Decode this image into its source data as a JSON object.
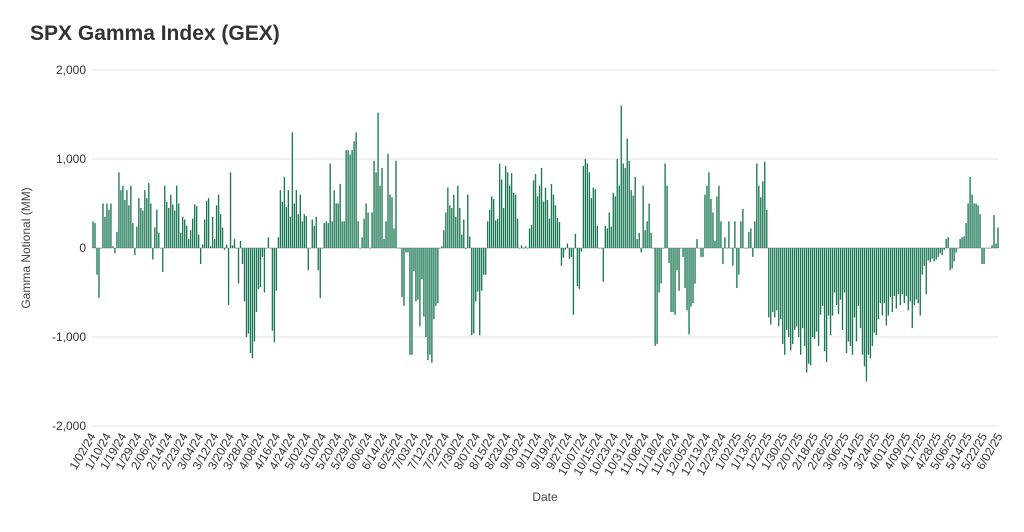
{
  "chart_data": {
    "type": "bar",
    "title": "SPX Gamma Index (GEX)",
    "xlabel": "Date",
    "ylabel": "Gamma Notional (MM)",
    "ylim": [
      -2000,
      2000
    ],
    "yticks": [
      2000,
      1000,
      0,
      -1000,
      -2000
    ],
    "ytick_labels": [
      "2,000",
      "1,000",
      "0",
      "-1,000",
      "-2,000"
    ],
    "grid": "horizontal",
    "color": "#1e7a54",
    "xtick_labels": [
      "1/02/24",
      "1/10/24",
      "1/19/24",
      "1/29/24",
      "2/06/24",
      "2/14/24",
      "2/23/24",
      "3/04/24",
      "3/12/24",
      "3/20/24",
      "3/28/24",
      "4/08/24",
      "4/16/24",
      "4/24/24",
      "5/02/24",
      "5/10/24",
      "5/20/24",
      "5/29/24",
      "6/06/24",
      "6/14/24",
      "6/25/24",
      "7/03/24",
      "7/12/24",
      "7/22/24",
      "7/30/24",
      "8/07/24",
      "8/15/24",
      "8/23/24",
      "9/03/24",
      "9/11/24",
      "9/19/24",
      "9/27/24",
      "10/07/24",
      "10/15/24",
      "10/23/24",
      "10/31/24",
      "11/08/24",
      "11/18/24",
      "11/26/24",
      "12/05/24",
      "12/13/24",
      "12/23/24",
      "1/02/25",
      "1/13/25",
      "1/22/25",
      "1/30/25",
      "2/07/25",
      "2/18/25",
      "2/26/25",
      "3/06/25",
      "3/14/25",
      "3/24/25",
      "4/01/25",
      "4/09/25",
      "4/17/25",
      "4/28/25",
      "5/06/25",
      "5/14/25",
      "5/22/25",
      "6/02/25"
    ],
    "values": [
      300,
      280,
      -300,
      -560,
      0,
      500,
      350,
      500,
      430,
      500,
      20,
      -60,
      180,
      850,
      650,
      700,
      540,
      650,
      480,
      700,
      280,
      -80,
      240,
      560,
      450,
      420,
      650,
      560,
      730,
      500,
      -130,
      230,
      430,
      170,
      0,
      -270,
      700,
      520,
      450,
      600,
      490,
      420,
      700,
      500,
      170,
      350,
      320,
      250,
      100,
      200,
      330,
      490,
      470,
      150,
      -180,
      40,
      320,
      530,
      560,
      20,
      350,
      100,
      480,
      600,
      380,
      230,
      -20,
      40,
      -640,
      850,
      30,
      100,
      0,
      -400,
      80,
      -180,
      -600,
      -1000,
      -960,
      -1180,
      -1240,
      -1050,
      -720,
      -460,
      -440,
      -100,
      -500,
      0,
      120,
      0,
      -930,
      -1060,
      -480,
      120,
      650,
      520,
      800,
      460,
      650,
      350,
      1300,
      500,
      650,
      380,
      600,
      300,
      380,
      360,
      -250,
      0,
      320,
      250,
      350,
      -250,
      -560,
      0,
      280,
      300,
      280,
      950,
      300,
      650,
      500,
      500,
      720,
      300,
      300,
      1100,
      1100,
      1050,
      1100,
      1200,
      1300,
      300,
      0,
      120,
      330,
      500,
      400,
      0,
      400,
      980,
      850,
      1520,
      700,
      900,
      100,
      300,
      1060,
      600,
      570,
      220,
      980,
      0,
      0,
      -550,
      -650,
      -50,
      -50,
      -1200,
      -1200,
      -260,
      -600,
      -580,
      -880,
      -350,
      -770,
      -1000,
      -1260,
      -1200,
      -1290,
      -800,
      -650,
      -620,
      0,
      20,
      200,
      400,
      680,
      480,
      450,
      600,
      350,
      700,
      450,
      150,
      320,
      -10,
      600,
      130,
      -980,
      -960,
      -600,
      -490,
      -980,
      -480,
      -300,
      -300,
      300,
      430,
      580,
      550,
      310,
      330,
      950,
      770,
      450,
      920,
      850,
      700,
      840,
      620,
      600,
      330,
      0,
      30,
      0,
      20,
      0,
      220,
      260,
      760,
      830,
      580,
      700,
      900,
      520,
      680,
      540,
      330,
      720,
      600,
      480,
      340,
      290,
      -200,
      -110,
      -20,
      50,
      -120,
      -100,
      -750,
      160,
      -430,
      -460,
      -40,
      920,
      1000,
      950,
      850,
      560,
      680,
      660,
      250,
      0,
      0,
      -380,
      250,
      220,
      400,
      240,
      620,
      580,
      1000,
      700,
      1600,
      950,
      900,
      1230,
      980,
      650,
      590,
      800,
      100,
      170,
      -50,
      700,
      200,
      300,
      500,
      170,
      0,
      -1100,
      -1080,
      -500,
      -400,
      0,
      950,
      700,
      -170,
      -720,
      -720,
      -750,
      -250,
      -480,
      0,
      -100,
      -450,
      -700,
      -970,
      -660,
      -620,
      -400,
      100,
      0,
      -100,
      -100,
      600,
      700,
      850,
      550,
      400,
      80,
      580,
      700,
      300,
      -180,
      120,
      0,
      300,
      0,
      -200,
      300,
      -450,
      -300,
      300,
      440,
      0,
      0,
      180,
      220,
      -100,
      300,
      950,
      700,
      570,
      750,
      970,
      430,
      -780,
      -860,
      -720,
      -780,
      -700,
      -880,
      -800,
      -1080,
      -1200,
      -920,
      -1000,
      -1150,
      -1080,
      -920,
      -880,
      -1000,
      -1200,
      -900,
      -1100,
      -1400,
      -1300,
      -1320,
      -1000,
      -1020,
      -940,
      -1100,
      -750,
      -650,
      -1160,
      -1280,
      -760,
      -980,
      -760,
      -500,
      -640,
      -740,
      -580,
      -920,
      -500,
      -1180,
      -1050,
      -1100,
      -1200,
      -780,
      -1050,
      -650,
      -900,
      -1200,
      -1330,
      -1500,
      -1200,
      -1240,
      -1100,
      -950,
      -980,
      -800,
      -620,
      -760,
      -620,
      -870,
      -760,
      -550,
      -720,
      -540,
      -680,
      -520,
      -640,
      -520,
      -620,
      -540,
      -700,
      -600,
      -900,
      -640,
      -580,
      -620,
      -760,
      -300,
      -200,
      -520,
      -140,
      -160,
      -120,
      -150,
      -130,
      -100,
      -60,
      -80,
      -20,
      100,
      120,
      -250,
      -230,
      -150,
      -50,
      0,
      100,
      120,
      130,
      280,
      500,
      800,
      600,
      500,
      500,
      480,
      380,
      -180,
      -180,
      0,
      0,
      0,
      30,
      370,
      50,
      230
    ]
  }
}
